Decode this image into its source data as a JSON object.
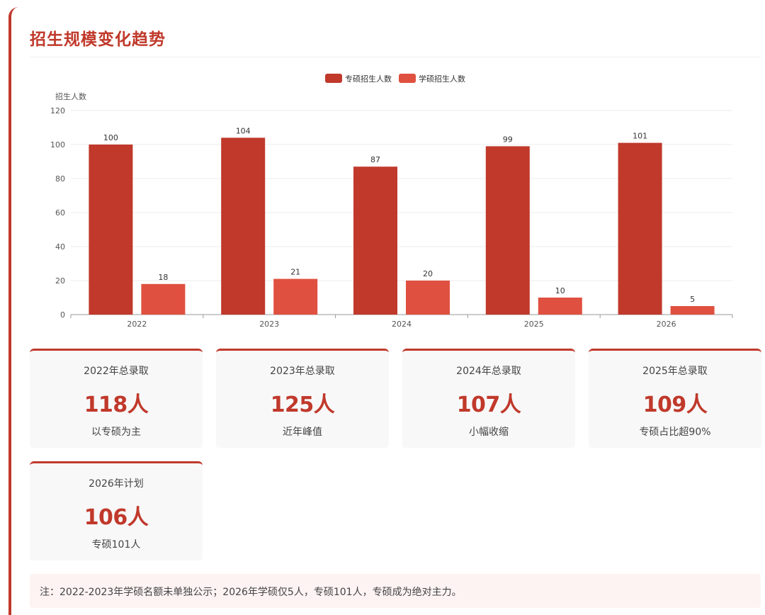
{
  "title": "招生规模变化趋势",
  "chart_data": {
    "type": "bar",
    "categories": [
      "2022",
      "2023",
      "2024",
      "2025",
      "2026"
    ],
    "series": [
      {
        "name": "专硕招生人数",
        "values": [
          100,
          104,
          87,
          99,
          101
        ],
        "color": "#c0392b"
      },
      {
        "name": "学硕招生人数",
        "values": [
          18,
          21,
          20,
          10,
          5
        ],
        "color": "#e05040"
      }
    ],
    "ylabel": "招生人数",
    "ylim": [
      0,
      120
    ],
    "yticks": [
      0,
      20,
      40,
      60,
      80,
      100,
      120
    ],
    "grid": true,
    "legend": "top-center",
    "data_labels": true
  },
  "stats": [
    {
      "label": "2022年总录取",
      "value": "118人",
      "desc": "以专硕为主"
    },
    {
      "label": "2023年总录取",
      "value": "125人",
      "desc": "近年峰值"
    },
    {
      "label": "2024年总录取",
      "value": "107人",
      "desc": "小幅收缩"
    },
    {
      "label": "2025年总录取",
      "value": "109人",
      "desc": "专硕占比超90%"
    },
    {
      "label": "2026年计划",
      "value": "106人",
      "desc": "专硕101人"
    }
  ],
  "note": "注：2022-2023年学硕名额未单独公示；2026年学硕仅5人，专硕101人，专硕成为绝对主力。",
  "colors": {
    "accent": "#c0392b",
    "series2": "#e05040",
    "card_bg": "#f8f8f8",
    "note_bg": "#fdf3f3"
  }
}
